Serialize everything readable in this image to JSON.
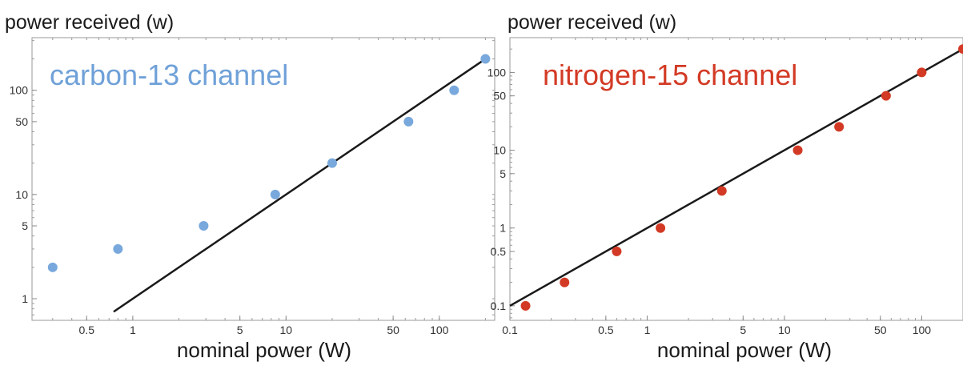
{
  "chart_data": [
    {
      "type": "scatter",
      "ylabel": "power received (w)",
      "xlabel": "nominal power (W)",
      "annotation": "carbon-13 channel",
      "annotation_color": "#6fa1d8",
      "point_color": "#78a8dc",
      "line_color": "#1a1a1a",
      "x_scale": "log",
      "y_scale": "log",
      "xlim": [
        0.22,
        230
      ],
      "ylim": [
        0.62,
        320
      ],
      "x_ticks": [
        0.5,
        1,
        5,
        10,
        50,
        100
      ],
      "x_tick_labels": [
        "0.5",
        "1",
        "5",
        "10",
        "50",
        "100"
      ],
      "y_ticks": [
        1,
        5,
        10,
        50,
        100
      ],
      "y_tick_labels": [
        "1",
        "5",
        "10",
        "50",
        "100"
      ],
      "points": {
        "x": [
          0.3,
          0.8,
          2.9,
          8.5,
          20,
          63,
          125,
          200
        ],
        "y": [
          2,
          3,
          5,
          10,
          20,
          50,
          100,
          200
        ]
      },
      "fit_line": {
        "x": [
          0.75,
          200
        ],
        "y": [
          0.75,
          200
        ]
      }
    },
    {
      "type": "scatter",
      "ylabel": "power received (w)",
      "xlabel": "nominal power (W)",
      "annotation": "nitrogen-15 channel",
      "annotation_color": "#d33a25",
      "point_color": "#d33a25",
      "line_color": "#1a1a1a",
      "x_scale": "log",
      "y_scale": "log",
      "xlim": [
        0.1,
        200
      ],
      "ylim": [
        0.065,
        280
      ],
      "x_ticks": [
        0.1,
        0.5,
        1,
        5,
        10,
        50,
        100
      ],
      "x_tick_labels": [
        "0.1",
        "0.5",
        "1",
        "5",
        "10",
        "50",
        "100"
      ],
      "y_ticks": [
        0.1,
        0.5,
        1,
        5,
        10,
        50,
        100
      ],
      "y_tick_labels": [
        "0.1",
        "0.5",
        "1",
        "5",
        "10",
        "50",
        "100"
      ],
      "points": {
        "x": [
          0.13,
          0.25,
          0.6,
          1.25,
          3.5,
          12.5,
          25,
          55,
          100,
          200
        ],
        "y": [
          0.1,
          0.2,
          0.5,
          1,
          3,
          10,
          20,
          50,
          100,
          200
        ]
      },
      "fit_line": {
        "x": [
          0.1,
          200
        ],
        "y": [
          0.1,
          200
        ]
      }
    }
  ]
}
